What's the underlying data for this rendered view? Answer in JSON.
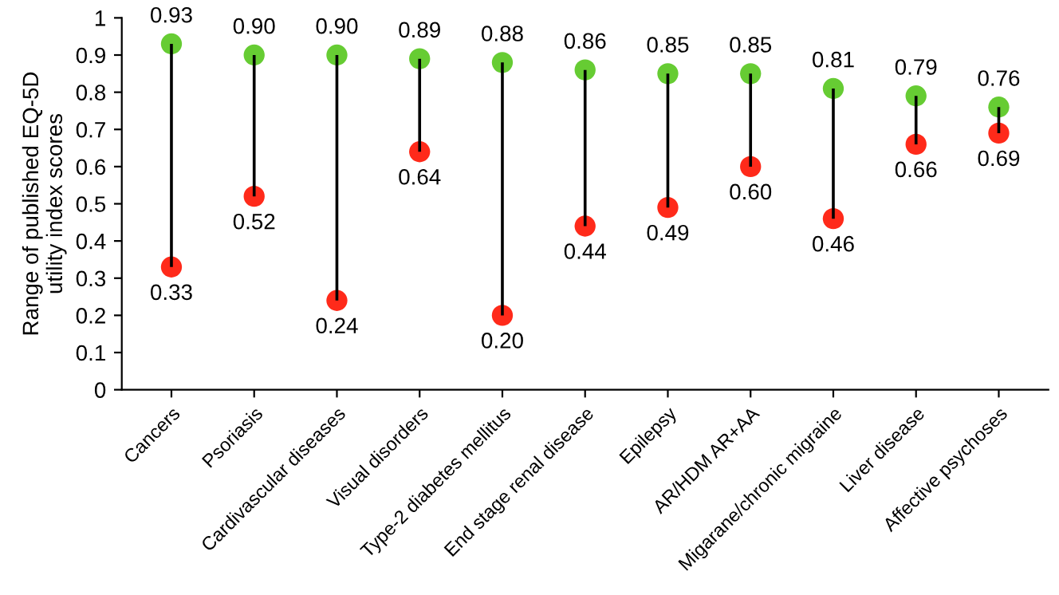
{
  "chart_data": {
    "type": "bar",
    "ylabel": "Range of published EQ-5D\nutility index scores",
    "categories": [
      "Cancers",
      "Psoriasis",
      "Cardivascular diseases",
      "Visual disorders",
      "Type-2 diabetes mellitus",
      "End stage renal disease",
      "Epilepsy",
      "AR/HDM AR+AA",
      "Migarane/chronic migraine",
      "Liver disease",
      "Affective psychoses"
    ],
    "series": [
      {
        "color": "#000000",
        "base": [
          0.33,
          0.52,
          0.24,
          0.64,
          0.2,
          0.44,
          0.49,
          0.6,
          0.46,
          0.66,
          0.69
        ],
        "values": [
          0.6,
          0.38,
          0.66,
          0.25,
          0.68,
          0.42,
          0.36,
          0.25,
          0.35,
          0.13,
          0.07
        ]
      },
      {
        "type": "scatter",
        "color": "#66cc33",
        "marker": "circle",
        "values": [
          0.93,
          0.9,
          0.9,
          0.89,
          0.88,
          0.86,
          0.85,
          0.85,
          0.81,
          0.79,
          0.76
        ],
        "value_labels": [
          "0.93",
          "0.90",
          "0.90",
          "0.89",
          "0.88",
          "0.86",
          "0.85",
          "0.85",
          "0.81",
          "0.79",
          "0.76"
        ]
      },
      {
        "type": "scatter",
        "color": "#ff2a1a",
        "marker": "circle",
        "values": [
          0.33,
          0.52,
          0.24,
          0.64,
          0.2,
          0.44,
          0.49,
          0.6,
          0.46,
          0.66,
          0.69
        ],
        "value_labels": [
          "0.33",
          "0.52",
          "0.24",
          "0.64",
          "0.20",
          "0.44",
          "0.49",
          "0.60",
          "0.46",
          "0.66",
          "0.69"
        ]
      }
    ],
    "ylim": [
      0,
      1
    ],
    "yticks": [
      0,
      0.1,
      0.2,
      0.3,
      0.4,
      0.5,
      0.6,
      0.7,
      0.8,
      0.9,
      1
    ],
    "grid": false
  }
}
